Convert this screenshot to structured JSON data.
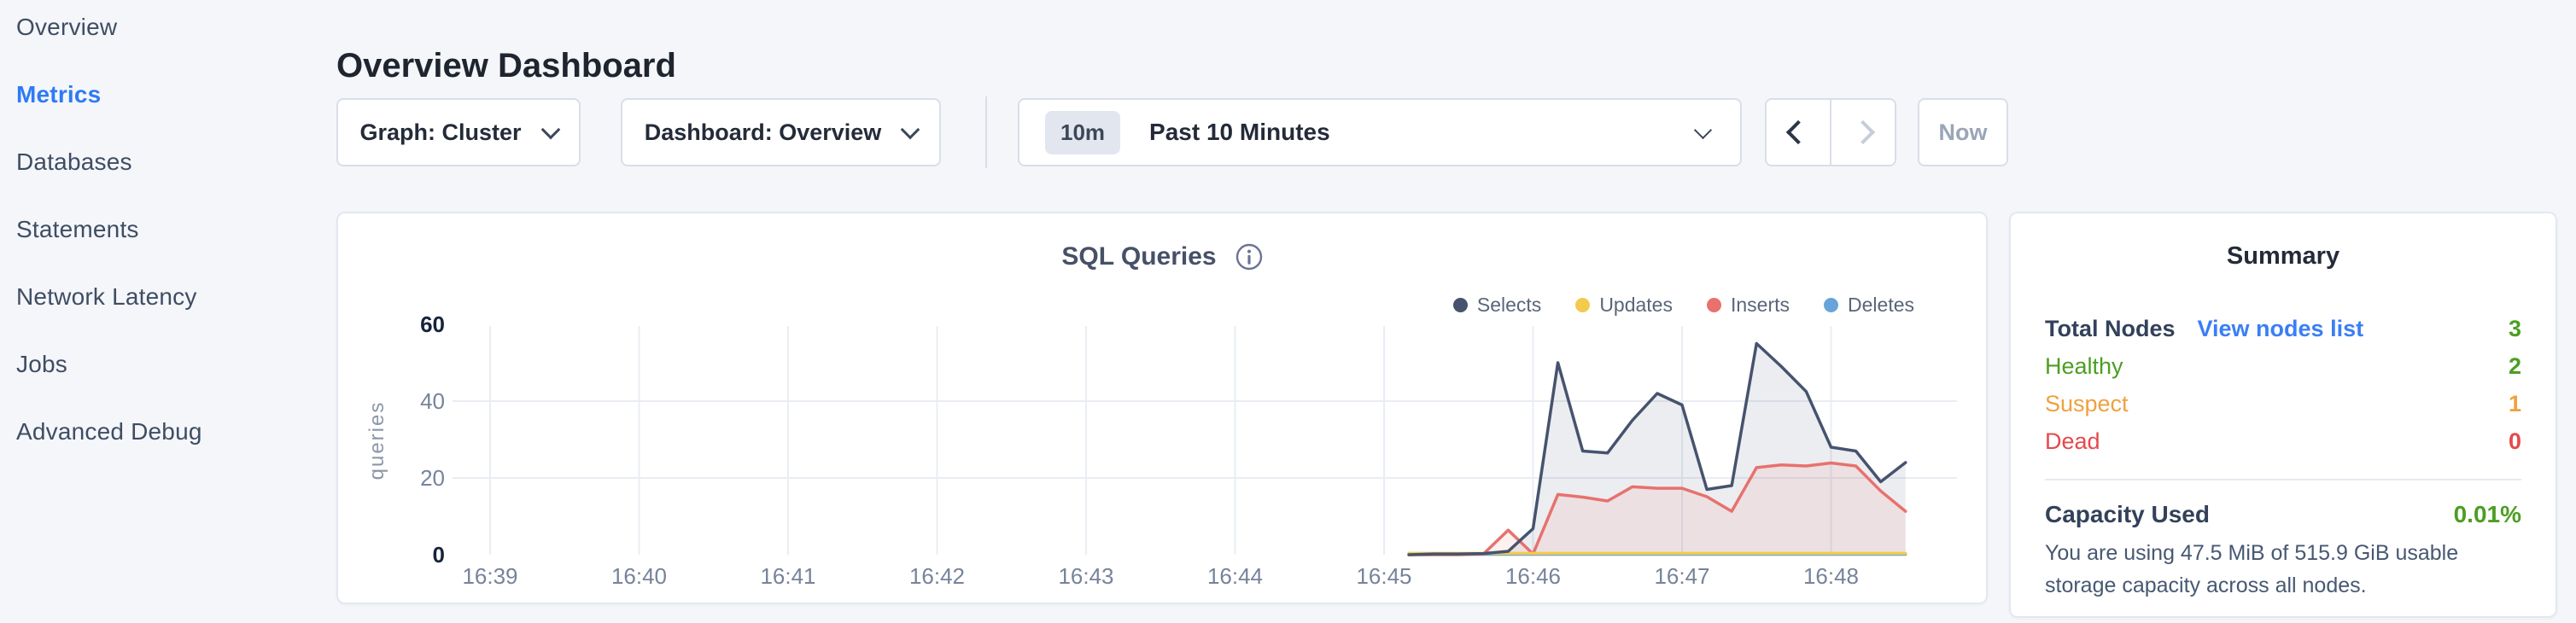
{
  "sidebar": {
    "items": [
      {
        "label": "Overview",
        "active": false
      },
      {
        "label": "Metrics",
        "active": true
      },
      {
        "label": "Databases",
        "active": false
      },
      {
        "label": "Statements",
        "active": false
      },
      {
        "label": "Network Latency",
        "active": false
      },
      {
        "label": "Jobs",
        "active": false
      },
      {
        "label": "Advanced Debug",
        "active": false
      }
    ],
    "active_color": "#2f7af5"
  },
  "header": {
    "title": "Overview Dashboard"
  },
  "controls": {
    "graph_dropdown": {
      "label": "Graph: Cluster"
    },
    "dashboard_dropdown": {
      "label": "Dashboard: Overview"
    },
    "time_window": {
      "badge": "10m",
      "label": "Past 10 Minutes"
    },
    "now_button": {
      "label": "Now",
      "enabled": false
    },
    "prev_enabled": true,
    "next_enabled": false
  },
  "chart_data": {
    "type": "area",
    "title": "SQL Queries",
    "ylabel": "queries",
    "ylim": [
      0,
      60
    ],
    "y_ticks": [
      0,
      20,
      40,
      60
    ],
    "y_gridlines": [
      20,
      40
    ],
    "x_ticks": [
      "16:39",
      "16:40",
      "16:41",
      "16:42",
      "16:43",
      "16:44",
      "16:45",
      "16:46",
      "16:47",
      "16:48"
    ],
    "grid": true,
    "legend_position": "top-right",
    "series": [
      {
        "name": "Selects",
        "color": "#46536e",
        "fill": "rgba(70,83,110,0.10)",
        "points": [
          [
            "16:45:10",
            0
          ],
          [
            "16:45:20",
            0.2
          ],
          [
            "16:45:30",
            0.2
          ],
          [
            "16:45:40",
            0.3
          ],
          [
            "16:45:50",
            0.9
          ],
          [
            "16:46:00",
            6.8
          ],
          [
            "16:46:10",
            50
          ],
          [
            "16:46:20",
            27
          ],
          [
            "16:46:30",
            26.5
          ],
          [
            "16:46:40",
            35
          ],
          [
            "16:46:50",
            42
          ],
          [
            "16:47:00",
            39
          ],
          [
            "16:47:10",
            17
          ],
          [
            "16:47:20",
            18
          ],
          [
            "16:47:30",
            55
          ],
          [
            "16:47:40",
            49
          ],
          [
            "16:47:50",
            42.5
          ],
          [
            "16:48:00",
            28
          ],
          [
            "16:48:10",
            27
          ],
          [
            "16:48:20",
            19
          ],
          [
            "16:48:30",
            24
          ]
        ]
      },
      {
        "name": "Updates",
        "color": "#f2ca4d",
        "fill": null,
        "points": [
          [
            "16:45:10",
            0.35
          ],
          [
            "16:48:30",
            0.35
          ]
        ]
      },
      {
        "name": "Inserts",
        "color": "#e8716d",
        "fill": "rgba(232,113,109,0.10)",
        "points": [
          [
            "16:45:10",
            0
          ],
          [
            "16:45:20",
            0
          ],
          [
            "16:45:30",
            0
          ],
          [
            "16:45:40",
            0.2
          ],
          [
            "16:45:50",
            6.4
          ],
          [
            "16:46:00",
            0.2
          ],
          [
            "16:46:10",
            15.7
          ],
          [
            "16:46:20",
            15
          ],
          [
            "16:46:30",
            14
          ],
          [
            "16:46:40",
            17.7
          ],
          [
            "16:46:50",
            17.3
          ],
          [
            "16:47:00",
            17.3
          ],
          [
            "16:47:10",
            15.1
          ],
          [
            "16:47:20",
            11.3
          ],
          [
            "16:47:30",
            22.7
          ],
          [
            "16:47:40",
            23.4
          ],
          [
            "16:47:50",
            23.1
          ],
          [
            "16:48:00",
            23.9
          ],
          [
            "16:48:10",
            23.1
          ],
          [
            "16:48:20",
            16.6
          ],
          [
            "16:48:30",
            11.3
          ]
        ]
      },
      {
        "name": "Deletes",
        "color": "#68a4d9",
        "fill": null,
        "points": [
          [
            "16:45:10",
            0.1
          ],
          [
            "16:48:30",
            0.1
          ]
        ]
      }
    ]
  },
  "summary": {
    "title": "Summary",
    "rows": [
      {
        "label": "Total Nodes",
        "link": "View nodes list",
        "value": "3",
        "label_color": "#33415a",
        "value_color": "#4c9e22"
      },
      {
        "label": "Healthy",
        "value": "2",
        "label_color": "#4c9e22",
        "value_color": "#4c9e22"
      },
      {
        "label": "Suspect",
        "value": "1",
        "label_color": "#f0a13f",
        "value_color": "#f0a13f"
      },
      {
        "label": "Dead",
        "value": "0",
        "label_color": "#e5494d",
        "value_color": "#e5494d"
      }
    ],
    "capacity": {
      "label": "Capacity Used",
      "value": "0.01%",
      "value_color": "#4c9e22",
      "description": "You are using 47.5 MiB of 515.9 GiB usable storage capacity across all nodes."
    },
    "link_color": "#3b7ef5"
  },
  "colors": {
    "page_bg": "#f4f6fa",
    "card_border": "#e3e8ef",
    "gridline": "#e9edf3",
    "tick_bold": "#17233c",
    "tick_gray": "#76839b"
  }
}
